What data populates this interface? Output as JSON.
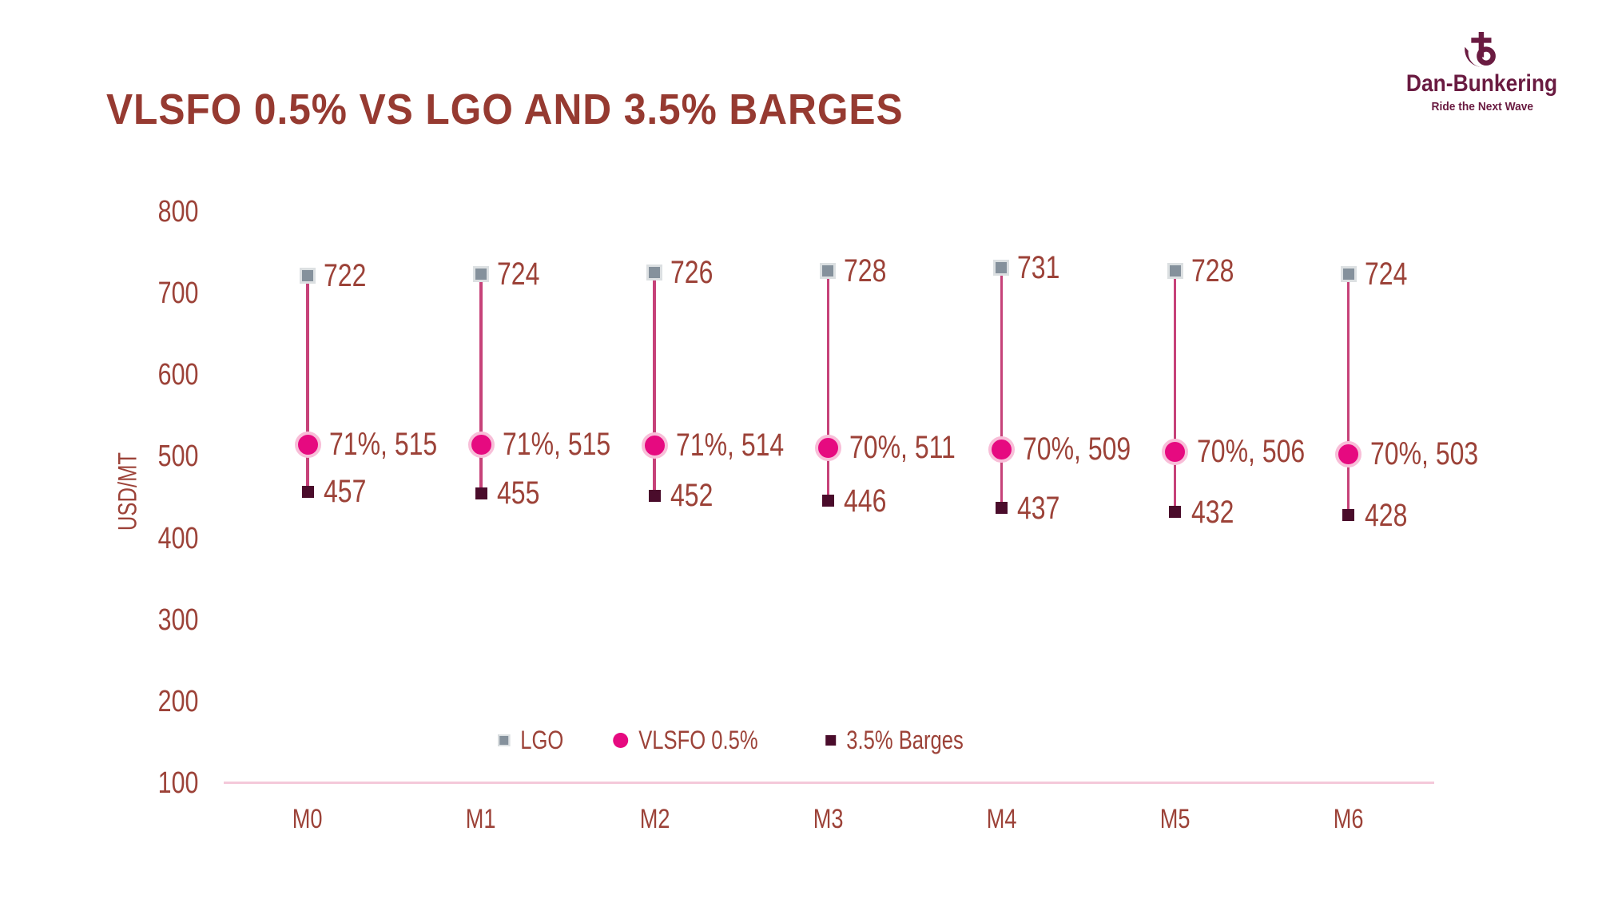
{
  "header": {
    "title": "VLSFO 0.5% VS LGO AND 3.5% BARGES"
  },
  "logo": {
    "name": "Dan-Bunkering",
    "tagline": "Ride the Next Wave"
  },
  "chart_data": {
    "type": "scatter",
    "subtype": "vertical-dot-range-plot",
    "title": "VLSFO 0.5% VS LGO AND 3.5% BARGES",
    "categories": [
      "M0",
      "M1",
      "M2",
      "M3",
      "M4",
      "M5",
      "M6"
    ],
    "xlabel": "",
    "ylabel": "USD/MT",
    "ylim": [
      100,
      800
    ],
    "yticks": [
      800,
      700,
      600,
      500,
      400,
      300,
      200,
      100
    ],
    "grid": false,
    "legend_position": "bottom-center",
    "series": [
      {
        "name": "LGO",
        "marker": "square",
        "values": [
          722,
          724,
          726,
          728,
          731,
          728,
          724
        ],
        "labels": [
          "722",
          "724",
          "726",
          "728",
          "731",
          "728",
          "724"
        ]
      },
      {
        "name": "VLSFO 0.5%",
        "marker": "circle",
        "values": [
          515,
          515,
          514,
          511,
          509,
          506,
          503
        ],
        "percent_of_lgo": [
          71,
          71,
          71,
          70,
          70,
          70,
          70
        ],
        "labels": [
          "71%, 515",
          "71%, 515",
          "71%, 514",
          "70%, 511",
          "70%, 509",
          "70%, 506",
          "70%, 503"
        ]
      },
      {
        "name": "3.5% Barges",
        "marker": "square",
        "values": [
          457,
          455,
          452,
          446,
          437,
          432,
          428
        ],
        "labels": [
          "457",
          "455",
          "452",
          "446",
          "437",
          "432",
          "428"
        ]
      }
    ]
  },
  "colors": {
    "titleText": "#963A31",
    "labelText": "#9C4238",
    "logoBurgundy": "#6A1B41",
    "lgoGray": "#85919C",
    "lgoBorder": "#DCE0E2",
    "vlsfoPink": "#E60A80",
    "vlsfoRing": "#F8BED8",
    "bargesMaroon": "#4A0C2B",
    "connectorPink": "#C64279",
    "baselinePink": "#F4C9DA"
  }
}
